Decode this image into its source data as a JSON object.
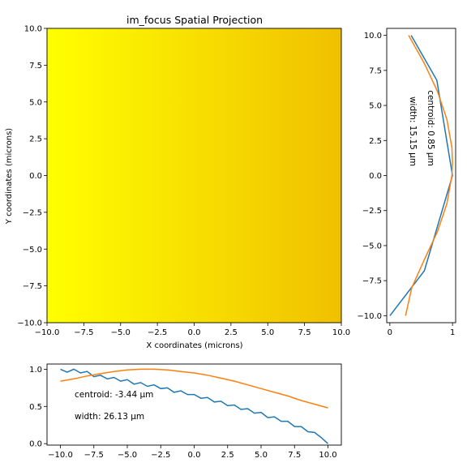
{
  "title": "im_focus Spatial Projection",
  "colors": {
    "heat_left": "#ffff00",
    "heat_right": "#f0c000",
    "series_data": "#1f77b4",
    "series_fit": "#ff7f0e"
  },
  "chart_data": [
    {
      "id": "main",
      "type": "heatmap",
      "title": "im_focus Spatial Projection",
      "xlabel": "X coordinates (microns)",
      "ylabel": "Y coordinates (microns)",
      "xlim": [
        -10,
        10
      ],
      "ylim": [
        -10,
        10
      ],
      "x_ticks": [
        -10,
        -7.5,
        -5,
        -2.5,
        0,
        2.5,
        5,
        7.5,
        10
      ],
      "y_ticks": [
        -10,
        -7.5,
        -5,
        -2.5,
        0,
        2.5,
        5,
        7.5,
        10
      ],
      "x_tick_labels": [
        "−10.0",
        "−7.5",
        "−5.0",
        "−2.5",
        "0.0",
        "2.5",
        "5.0",
        "7.5",
        "10.0"
      ],
      "y_tick_labels": [
        "−10.0",
        "−7.5",
        "−5.0",
        "−2.5",
        "0.0",
        "2.5",
        "5.0",
        "7.5",
        "10.0"
      ],
      "intensity_gradient": {
        "x": [
          -10,
          10
        ],
        "value": [
          1.0,
          0.9
        ]
      },
      "grid": false
    },
    {
      "id": "right",
      "type": "line",
      "orientation": "vertical",
      "xlim": [
        -0.05,
        1.05
      ],
      "ylim": [
        -10.5,
        10.5
      ],
      "x_ticks": [
        0,
        1
      ],
      "x_tick_labels": [
        "0",
        "1"
      ],
      "y_ticks": [
        -10,
        -7.5,
        -5,
        -2.5,
        0,
        2.5,
        5,
        7.5,
        10
      ],
      "y_tick_labels": [
        "−10.0",
        "−7.5",
        "−5.0",
        "−2.5",
        "0.0",
        "2.5",
        "5.0",
        "7.5",
        "10.0"
      ],
      "annotations": [
        "centroid: 0.85 µm",
        "width: 15.15 µm"
      ],
      "series": [
        {
          "role": "data",
          "y": [
            10,
            6.8,
            0,
            -6.8,
            -10
          ],
          "x": [
            0.34,
            0.75,
            1.0,
            0.55,
            0.0
          ]
        },
        {
          "role": "fit",
          "y": [
            10,
            8,
            6,
            4,
            2,
            0.85,
            0,
            -2,
            -4,
            -6,
            -8,
            -10
          ],
          "x": [
            0.3,
            0.55,
            0.76,
            0.91,
            0.99,
            1.0,
            0.99,
            0.91,
            0.76,
            0.55,
            0.35,
            0.25
          ]
        }
      ],
      "grid": false
    },
    {
      "id": "bottom",
      "type": "line",
      "xlim": [
        -11,
        11
      ],
      "ylim": [
        -0.02,
        1.07
      ],
      "x_ticks": [
        -10,
        -7.5,
        -5,
        -2.5,
        0,
        2.5,
        5,
        7.5,
        10
      ],
      "x_tick_labels": [
        "−10.0",
        "−7.5",
        "−5.0",
        "−2.5",
        "0.0",
        "2.5",
        "5.0",
        "7.5",
        "10.0"
      ],
      "y_ticks": [
        0,
        0.5,
        1
      ],
      "y_tick_labels": [
        "0.0",
        "0.5",
        "1.0"
      ],
      "annotations": [
        "centroid: -3.44 µm",
        "width: 26.13 µm"
      ],
      "series": [
        {
          "role": "data",
          "x": [
            -10.0,
            -9.5,
            -9.0,
            -8.5,
            -8.0,
            -7.5,
            -7.0,
            -6.5,
            -6.0,
            -5.5,
            -5.0,
            -4.5,
            -4.0,
            -3.5,
            -3.0,
            -2.5,
            -2.0,
            -1.5,
            -1.0,
            -0.5,
            0.0,
            0.5,
            1.0,
            1.5,
            2.0,
            2.5,
            3.0,
            3.5,
            4.0,
            4.5,
            5.0,
            5.5,
            6.0,
            6.5,
            7.0,
            7.5,
            8.0,
            8.5,
            9.0,
            9.5,
            10.0
          ],
          "values": [
            1.0,
            0.96,
            1.0,
            0.95,
            0.97,
            0.9,
            0.92,
            0.87,
            0.89,
            0.84,
            0.86,
            0.8,
            0.82,
            0.77,
            0.79,
            0.74,
            0.75,
            0.69,
            0.71,
            0.66,
            0.66,
            0.61,
            0.62,
            0.56,
            0.57,
            0.51,
            0.52,
            0.46,
            0.47,
            0.41,
            0.42,
            0.35,
            0.36,
            0.3,
            0.3,
            0.23,
            0.23,
            0.16,
            0.15,
            0.08,
            0.0
          ]
        },
        {
          "role": "fit",
          "x": [
            -10,
            -9,
            -8,
            -7,
            -6,
            -5,
            -4,
            -3.44,
            -3,
            -2,
            -1,
            0,
            1,
            2,
            3,
            4,
            5,
            6,
            7,
            8,
            9,
            10
          ],
          "values": [
            0.84,
            0.87,
            0.91,
            0.94,
            0.97,
            0.99,
            1.0,
            1.0,
            1.0,
            0.99,
            0.97,
            0.95,
            0.92,
            0.88,
            0.84,
            0.79,
            0.74,
            0.69,
            0.64,
            0.58,
            0.53,
            0.48
          ]
        }
      ],
      "grid": false
    }
  ]
}
